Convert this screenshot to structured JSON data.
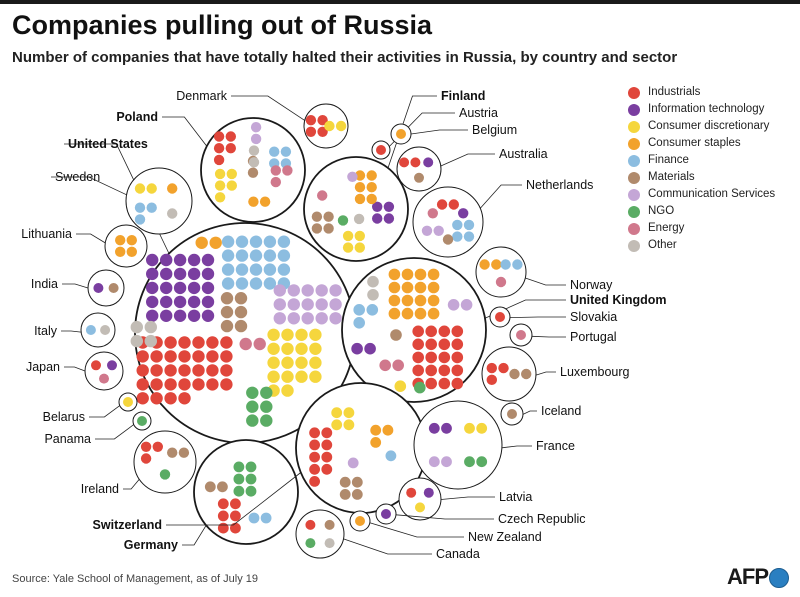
{
  "title": "Companies pulling out of Russia",
  "subtitle": "Number of companies that have totally halted their activities in Russia, by country and sector",
  "source": "Source: Yale School of Management, as of July 19",
  "logo": "AFP",
  "legend": [
    {
      "name": "Industrials",
      "color": "#e0463b"
    },
    {
      "name": "Information technology",
      "color": "#7a3ea0"
    },
    {
      "name": "Consumer discretionary",
      "color": "#f5d63d"
    },
    {
      "name": "Consumer staples",
      "color": "#f2a22c"
    },
    {
      "name": "Finance",
      "color": "#8cbde0"
    },
    {
      "name": "Materials",
      "color": "#b08a6c"
    },
    {
      "name": "Communication Services",
      "color": "#c4a6d6"
    },
    {
      "name": "NGO",
      "color": "#5aac64"
    },
    {
      "name": "Energy",
      "color": "#d0788c"
    },
    {
      "name": "Other",
      "color": "#c2bcb5"
    }
  ],
  "chart_data": {
    "type": "bubble-dot-matrix",
    "unit": "1 dot = 1 company",
    "sectors": [
      "Industrials",
      "Information technology",
      "Consumer discretionary",
      "Consumer staples",
      "Finance",
      "Materials",
      "Communication Services",
      "NGO",
      "Energy",
      "Other"
    ],
    "countries": [
      {
        "name": "United States",
        "values": {
          "Industrials": 32,
          "Information technology": 25,
          "Consumer discretionary": 18,
          "Consumer staples": 2,
          "Finance": 20,
          "Materials": 6,
          "Communication Services": 15,
          "NGO": 6,
          "Energy": 2,
          "Other": 4
        }
      },
      {
        "name": "United Kingdom",
        "values": {
          "Industrials": 20,
          "Information technology": 2,
          "Consumer discretionary": 1,
          "Consumer staples": 16,
          "Finance": 3,
          "Materials": 1,
          "Communication Services": 2,
          "NGO": 1,
          "Energy": 2,
          "Other": 2
        }
      },
      {
        "name": "Germany",
        "values": {
          "Industrials": 6,
          "Information technology": 0,
          "Consumer discretionary": 0,
          "Consumer staples": 0,
          "Finance": 2,
          "Materials": 2,
          "Communication Services": 0,
          "NGO": 6,
          "Energy": 0,
          "Other": 0
        }
      },
      {
        "name": "Finland",
        "values": {
          "Industrials": 0,
          "Information technology": 4,
          "Consumer discretionary": 4,
          "Consumer staples": 6,
          "Finance": 0,
          "Materials": 4,
          "Communication Services": 1,
          "NGO": 1,
          "Energy": 1,
          "Other": 1
        }
      },
      {
        "name": "Poland",
        "values": {
          "Industrials": 5,
          "Information technology": 0,
          "Consumer discretionary": 5,
          "Consumer staples": 2,
          "Finance": 4,
          "Materials": 2,
          "Communication Services": 2,
          "NGO": 0,
          "Energy": 3,
          "Other": 2
        }
      },
      {
        "name": "Switzerland",
        "values": {
          "Industrials": 9,
          "Information technology": 0,
          "Consumer discretionary": 4,
          "Consumer staples": 3,
          "Finance": 1,
          "Materials": 4,
          "Communication Services": 1,
          "NGO": 0,
          "Energy": 0,
          "Other": 0
        }
      },
      {
        "name": "Sweden",
        "values": {
          "Industrials": 0,
          "Information technology": 0,
          "Consumer discretionary": 2,
          "Consumer staples": 1,
          "Finance": 3,
          "Materials": 0,
          "Communication Services": 0,
          "NGO": 0,
          "Energy": 0,
          "Other": 1
        }
      },
      {
        "name": "Denmark",
        "values": {
          "Industrials": 4,
          "Information technology": 0,
          "Consumer discretionary": 2,
          "Consumer staples": 0,
          "Finance": 0,
          "Materials": 0,
          "Communication Services": 0,
          "NGO": 0,
          "Energy": 0,
          "Other": 0
        }
      },
      {
        "name": "Austria",
        "values": {
          "Industrials": 1,
          "Information technology": 0,
          "Consumer discretionary": 0,
          "Consumer staples": 0,
          "Finance": 0,
          "Materials": 0,
          "Communication Services": 0,
          "NGO": 0,
          "Energy": 0,
          "Other": 0
        }
      },
      {
        "name": "Belgium",
        "values": {
          "Industrials": 0,
          "Information technology": 0,
          "Consumer discretionary": 0,
          "Consumer staples": 1,
          "Finance": 0,
          "Materials": 0,
          "Communication Services": 0,
          "NGO": 0,
          "Energy": 0,
          "Other": 0
        }
      },
      {
        "name": "Australia",
        "values": {
          "Industrials": 2,
          "Information technology": 1,
          "Consumer discretionary": 0,
          "Consumer staples": 0,
          "Finance": 0,
          "Materials": 1,
          "Communication Services": 0,
          "NGO": 0,
          "Energy": 0,
          "Other": 0
        }
      },
      {
        "name": "Netherlands",
        "values": {
          "Industrials": 2,
          "Information technology": 1,
          "Consumer discretionary": 0,
          "Consumer staples": 0,
          "Finance": 4,
          "Materials": 1,
          "Communication Services": 2,
          "NGO": 0,
          "Energy": 1,
          "Other": 0
        }
      },
      {
        "name": "Lithuania",
        "values": {
          "Industrials": 0,
          "Information technology": 0,
          "Consumer discretionary": 0,
          "Consumer staples": 4,
          "Finance": 0,
          "Materials": 0,
          "Communication Services": 0,
          "NGO": 0,
          "Energy": 0,
          "Other": 0
        }
      },
      {
        "name": "India",
        "values": {
          "Industrials": 0,
          "Information technology": 1,
          "Consumer discretionary": 0,
          "Consumer staples": 0,
          "Finance": 0,
          "Materials": 1,
          "Communication Services": 0,
          "NGO": 0,
          "Energy": 0,
          "Other": 0
        }
      },
      {
        "name": "Italy",
        "values": {
          "Industrials": 0,
          "Information technology": 0,
          "Consumer discretionary": 0,
          "Consumer staples": 0,
          "Finance": 1,
          "Materials": 0,
          "Communication Services": 0,
          "NGO": 0,
          "Energy": 0,
          "Other": 1
        }
      },
      {
        "name": "Japan",
        "values": {
          "Industrials": 1,
          "Information technology": 1,
          "Consumer discretionary": 0,
          "Consumer staples": 0,
          "Finance": 0,
          "Materials": 0,
          "Communication Services": 0,
          "NGO": 0,
          "Energy": 1,
          "Other": 0
        }
      },
      {
        "name": "Belarus",
        "values": {
          "Industrials": 0,
          "Information technology": 0,
          "Consumer discretionary": 1,
          "Consumer staples": 0,
          "Finance": 0,
          "Materials": 0,
          "Communication Services": 0,
          "NGO": 0,
          "Energy": 0,
          "Other": 0
        }
      },
      {
        "name": "Panama",
        "values": {
          "Industrials": 0,
          "Information technology": 0,
          "Consumer discretionary": 0,
          "Consumer staples": 0,
          "Finance": 0,
          "Materials": 0,
          "Communication Services": 0,
          "NGO": 1,
          "Energy": 0,
          "Other": 0
        }
      },
      {
        "name": "Ireland",
        "values": {
          "Industrials": 3,
          "Information technology": 0,
          "Consumer discretionary": 0,
          "Consumer staples": 0,
          "Finance": 0,
          "Materials": 2,
          "Communication Services": 0,
          "NGO": 1,
          "Energy": 0,
          "Other": 0
        }
      },
      {
        "name": "Norway",
        "values": {
          "Industrials": 0,
          "Information technology": 0,
          "Consumer discretionary": 0,
          "Consumer staples": 2,
          "Finance": 2,
          "Materials": 0,
          "Communication Services": 0,
          "NGO": 0,
          "Energy": 1,
          "Other": 0
        }
      },
      {
        "name": "Slovakia",
        "values": {
          "Industrials": 1,
          "Information technology": 0,
          "Consumer discretionary": 0,
          "Consumer staples": 0,
          "Finance": 0,
          "Materials": 0,
          "Communication Services": 0,
          "NGO": 0,
          "Energy": 0,
          "Other": 0
        }
      },
      {
        "name": "Portugal",
        "values": {
          "Industrials": 0,
          "Information technology": 0,
          "Consumer discretionary": 0,
          "Consumer staples": 0,
          "Finance": 0,
          "Materials": 0,
          "Communication Services": 0,
          "NGO": 0,
          "Energy": 1,
          "Other": 0
        }
      },
      {
        "name": "Luxembourg",
        "values": {
          "Industrials": 3,
          "Information technology": 0,
          "Consumer discretionary": 0,
          "Consumer staples": 0,
          "Finance": 0,
          "Materials": 2,
          "Communication Services": 0,
          "NGO": 0,
          "Energy": 0,
          "Other": 0
        }
      },
      {
        "name": "Iceland",
        "values": {
          "Industrials": 0,
          "Information technology": 0,
          "Consumer discretionary": 0,
          "Consumer staples": 0,
          "Finance": 0,
          "Materials": 1,
          "Communication Services": 0,
          "NGO": 0,
          "Energy": 0,
          "Other": 0
        }
      },
      {
        "name": "France",
        "values": {
          "Industrials": 0,
          "Information technology": 2,
          "Consumer discretionary": 2,
          "Consumer staples": 0,
          "Finance": 0,
          "Materials": 0,
          "Communication Services": 2,
          "NGO": 2,
          "Energy": 0,
          "Other": 0
        }
      },
      {
        "name": "Latvia",
        "values": {
          "Industrials": 1,
          "Information technology": 1,
          "Consumer discretionary": 1,
          "Consumer staples": 0,
          "Finance": 0,
          "Materials": 0,
          "Communication Services": 0,
          "NGO": 0,
          "Energy": 0,
          "Other": 0
        }
      },
      {
        "name": "Czech Republic",
        "values": {
          "Industrials": 0,
          "Information technology": 1,
          "Consumer discretionary": 0,
          "Consumer staples": 0,
          "Finance": 0,
          "Materials": 0,
          "Communication Services": 0,
          "NGO": 0,
          "Energy": 0,
          "Other": 0
        }
      },
      {
        "name": "New Zealand",
        "values": {
          "Industrials": 0,
          "Information technology": 0,
          "Consumer discretionary": 0,
          "Consumer staples": 1,
          "Finance": 0,
          "Materials": 0,
          "Communication Services": 0,
          "NGO": 0,
          "Energy": 0,
          "Other": 0
        }
      },
      {
        "name": "Canada",
        "values": {
          "Industrials": 1,
          "Information technology": 0,
          "Consumer discretionary": 0,
          "Consumer staples": 0,
          "Finance": 0,
          "Materials": 1,
          "Communication Services": 0,
          "NGO": 1,
          "Energy": 0,
          "Other": 1
        }
      }
    ]
  }
}
